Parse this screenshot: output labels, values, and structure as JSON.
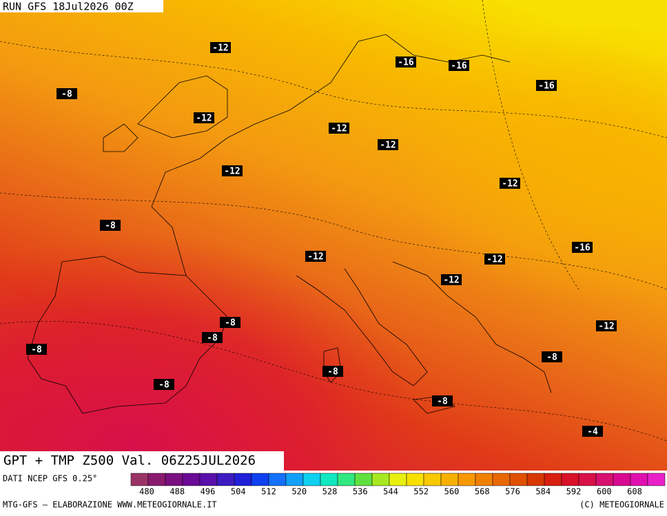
{
  "header": {
    "run": "RUN GFS 18Jul2026 00Z",
    "title": "GPT + TMP Z500 Val. 06Z25JUL2026"
  },
  "map": {
    "temperature_labels": [
      -12,
      -16,
      -16,
      -16,
      -8,
      -12,
      -12,
      -12,
      -12,
      -12,
      -8,
      -16,
      -12,
      -12,
      -12,
      -8,
      -8,
      -12,
      -8,
      -8,
      -8,
      -8,
      -8,
      -4
    ]
  },
  "legend": {
    "source": "DATI NCEP GFS 0.25°",
    "ticks": [
      480,
      488,
      496,
      504,
      512,
      520,
      528,
      536,
      544,
      552,
      560,
      568,
      576,
      584,
      592,
      600,
      608
    ],
    "colors": [
      "#993366",
      "#8a1a6e",
      "#7a0f80",
      "#6a0a96",
      "#5a10aa",
      "#3c1cc0",
      "#2020d8",
      "#1040f0",
      "#1470f8",
      "#10a0f8",
      "#10d0f0",
      "#10e8c0",
      "#30e880",
      "#60e040",
      "#a8e820",
      "#e8f010",
      "#f8e000",
      "#f8c800",
      "#f8b000",
      "#f89800",
      "#f08000",
      "#e86800",
      "#e05000",
      "#d83800",
      "#d82010",
      "#d81028",
      "#d81048",
      "#d81070",
      "#d80890",
      "#e010b0",
      "#e820c8"
    ]
  },
  "footer": {
    "credit": "MTG-GFS – ELABORAZIONE WWW.METEOGIORNALE.IT",
    "copyright": "(C) METEOGIORNALE"
  }
}
